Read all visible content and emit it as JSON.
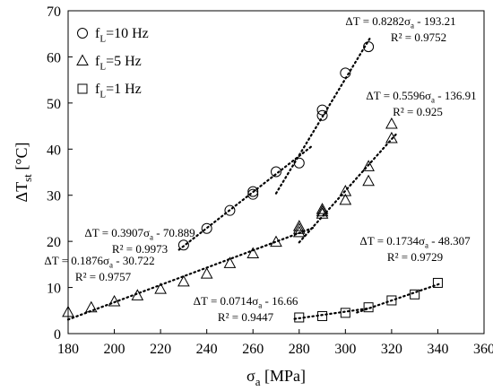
{
  "chart_data": {
    "type": "scatter",
    "xlabel": "σa [MPa]",
    "ylabel": "ΔTst [°C]",
    "xlim": [
      180,
      360
    ],
    "ylim": [
      0,
      70
    ],
    "x_ticks": [
      180,
      200,
      220,
      240,
      260,
      280,
      300,
      320,
      340,
      360
    ],
    "y_ticks": [
      0,
      10,
      20,
      30,
      40,
      50,
      60,
      70
    ],
    "grid": false,
    "legend_position": "top-left",
    "series": [
      {
        "name": "fL=10 Hz",
        "marker": "circle",
        "points": [
          [
            230,
            19.2
          ],
          [
            240,
            22.8
          ],
          [
            250,
            26.7
          ],
          [
            260,
            30.2
          ],
          [
            260,
            30.8
          ],
          [
            270,
            35.1
          ],
          [
            280,
            37.0
          ],
          [
            290,
            47.3
          ],
          [
            290,
            48.5
          ],
          [
            300,
            56.5
          ],
          [
            310,
            62.2
          ]
        ],
        "fits": [
          {
            "slope": 0.3907,
            "intercept": -70.889,
            "x_range": [
              228,
              286
            ],
            "eq": "ΔT = 0.3907σa - 70.889",
            "r2": "R² = 0.9973"
          },
          {
            "slope": 0.8282,
            "intercept": -193.21,
            "x_range": [
              270,
              311
            ],
            "eq": "ΔT = 0.8282σa - 193.21",
            "r2": "R² = 0.9752"
          }
        ]
      },
      {
        "name": "fL=5 Hz",
        "marker": "triangle",
        "points": [
          [
            180,
            4.6
          ],
          [
            190,
            5.6
          ],
          [
            200,
            6.9
          ],
          [
            210,
            8.2
          ],
          [
            220,
            9.6
          ],
          [
            230,
            11.2
          ],
          [
            240,
            12.9
          ],
          [
            250,
            15.2
          ],
          [
            260,
            17.3
          ],
          [
            270,
            19.8
          ],
          [
            280,
            21.9
          ],
          [
            280,
            22.6
          ],
          [
            280,
            23.2
          ],
          [
            290,
            25.9
          ],
          [
            290,
            26.4
          ],
          [
            290,
            26.9
          ],
          [
            300,
            28.9
          ],
          [
            300,
            30.8
          ],
          [
            310,
            33.0
          ],
          [
            310,
            36.2
          ],
          [
            320,
            42.3
          ],
          [
            320,
            45.4
          ]
        ],
        "fits": [
          {
            "slope": 0.1876,
            "intercept": -30.722,
            "x_range": [
              180,
              287
            ],
            "eq": "ΔT = 0.1876σa - 30.722",
            "r2": "R² = 0.9757"
          },
          {
            "slope": 0.5596,
            "intercept": -136.91,
            "x_range": [
              280,
              322
            ],
            "eq": "ΔT = 0.5596σa - 136.91",
            "r2": "R² = 0.925"
          }
        ]
      },
      {
        "name": "fL=1 Hz",
        "marker": "square",
        "points": [
          [
            280,
            3.5
          ],
          [
            290,
            3.8
          ],
          [
            300,
            4.5
          ],
          [
            310,
            5.7
          ],
          [
            320,
            7.2
          ],
          [
            330,
            8.5
          ],
          [
            340,
            11.0
          ]
        ],
        "fits": [
          {
            "slope": 0.0714,
            "intercept": -16.66,
            "x_range": [
              278,
              310
            ],
            "eq": "ΔT = 0.0714σa - 16.66",
            "r2": "R² = 0.9447"
          },
          {
            "slope": 0.1734,
            "intercept": -48.307,
            "x_range": [
              305,
              341
            ],
            "eq": "ΔT = 0.1734σa - 48.307",
            "r2": "R² = 0.9729"
          }
        ]
      }
    ]
  }
}
